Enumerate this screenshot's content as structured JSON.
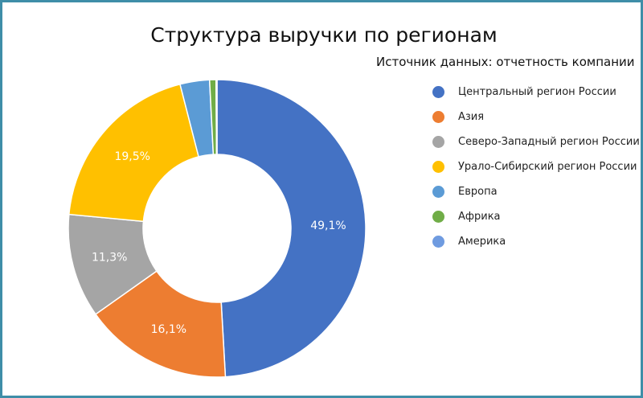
{
  "chart_data": {
    "type": "pie",
    "donut": true,
    "title": "Структура выручки по регионам",
    "subtitle": "Источник данных: отчетность компании",
    "legend_position": "right",
    "categories": [
      "Центральный регион России",
      "Азия",
      "Северо-Западный регион России",
      "Урало-Сибирский регион России",
      "Европа",
      "Африка",
      "Америка"
    ],
    "values": [
      49.1,
      16.1,
      11.3,
      19.5,
      3.2,
      0.7,
      0.1
    ],
    "data_labels": [
      "49,1%",
      "16,1%",
      "11,3%",
      "19,5%",
      "",
      "",
      ""
    ],
    "colors": [
      "#4472c4",
      "#ed7d31",
      "#a5a5a5",
      "#ffc000",
      "#5b9bd5",
      "#70ad47",
      "#6f9be0"
    ]
  }
}
